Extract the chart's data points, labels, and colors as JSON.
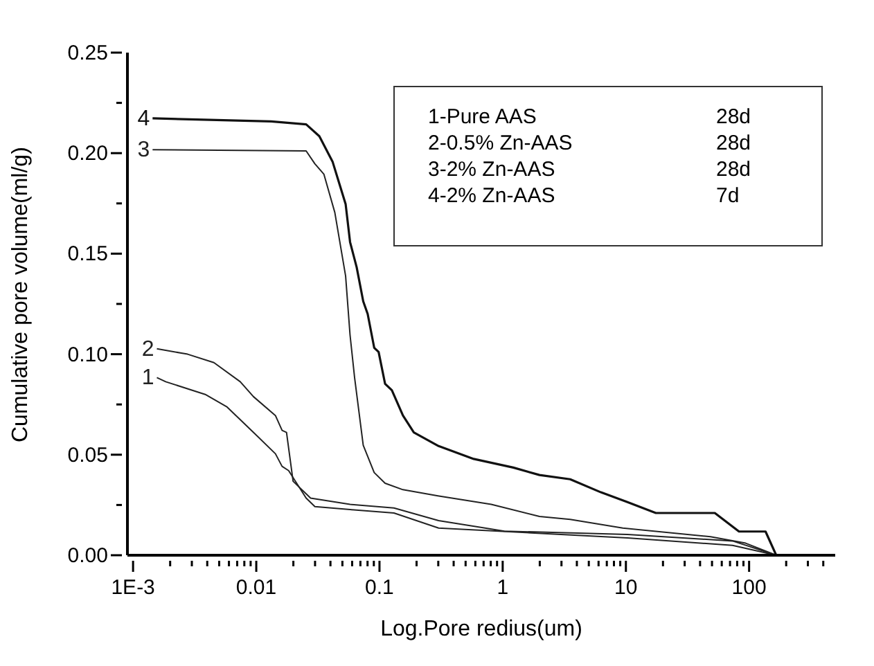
{
  "chart_data": {
    "type": "line",
    "xlabel": "Log.Pore redius(um)",
    "ylabel": "Cumulative pore volume(ml/g)",
    "log": "x",
    "marker": "none",
    "line_style": "solid",
    "xlim": [
      0.0009,
      500
    ],
    "ylim": [
      0,
      0.25
    ],
    "xticks": [
      {
        "value": 0.001,
        "label": "1E-3"
      },
      {
        "value": 0.002,
        "label": null
      },
      {
        "value": 0.003,
        "label": null
      },
      {
        "value": 0.004,
        "label": null
      },
      {
        "value": 0.005,
        "label": null
      },
      {
        "value": 0.006,
        "label": null
      },
      {
        "value": 0.007,
        "label": null
      },
      {
        "value": 0.008,
        "label": null
      },
      {
        "value": 0.009,
        "label": null
      },
      0.01,
      {
        "value": 0.02,
        "label": null
      },
      {
        "value": 0.03,
        "label": null
      },
      {
        "value": 0.04,
        "label": null
      },
      {
        "value": 0.05,
        "label": null
      },
      {
        "value": 0.06,
        "label": null
      },
      {
        "value": 0.07,
        "label": null
      },
      {
        "value": 0.08,
        "label": null
      },
      {
        "value": 0.09,
        "label": null
      },
      0.1,
      {
        "value": 0.2,
        "label": null
      },
      {
        "value": 0.3,
        "label": null
      },
      {
        "value": 0.4,
        "label": null
      },
      {
        "value": 0.5,
        "label": null
      },
      {
        "value": 0.6,
        "label": null
      },
      {
        "value": 0.7,
        "label": null
      },
      {
        "value": 0.8,
        "label": null
      },
      {
        "value": 0.9,
        "label": null
      },
      1,
      {
        "value": 2,
        "label": null
      },
      {
        "value": 3,
        "label": null
      },
      {
        "value": 4,
        "label": null
      },
      {
        "value": 5,
        "label": null
      },
      {
        "value": 6,
        "label": null
      },
      {
        "value": 7,
        "label": null
      },
      {
        "value": 8,
        "label": null
      },
      {
        "value": 9,
        "label": null
      },
      10,
      {
        "value": 20,
        "label": null
      },
      {
        "value": 30,
        "label": null
      },
      {
        "value": 40,
        "label": null
      },
      {
        "value": 50,
        "label": null
      },
      {
        "value": 60,
        "label": null
      },
      {
        "value": 70,
        "label": null
      },
      {
        "value": 80,
        "label": null
      },
      {
        "value": 90,
        "label": null
      },
      100,
      {
        "value": 200,
        "label": null
      },
      {
        "value": 300,
        "label": null
      },
      {
        "value": 400,
        "label": null
      }
    ],
    "yticks": [
      {
        "value": 0,
        "label": "0.00"
      },
      {
        "value": 0.025,
        "label": null
      },
      {
        "value": 0.05,
        "label": "0.05"
      },
      {
        "value": 0.075,
        "label": null
      },
      {
        "value": 0.1,
        "label": "0.10"
      },
      {
        "value": 0.125,
        "label": null
      },
      {
        "value": 0.15,
        "label": "0.15"
      },
      {
        "value": 0.175,
        "label": null
      },
      {
        "value": 0.2,
        "label": "0.20"
      },
      {
        "value": 0.225,
        "label": null
      },
      {
        "value": 0.25,
        "label": "0.25"
      }
    ],
    "annotations": [
      "1-Pure AAS 28d",
      "2-0.5% Zn-AAS 28d",
      "3-2% Zn-AAS 28d",
      "4-2% Zn-AAS 7d"
    ],
    "series": [
      {
        "name": "1",
        "color": "#222222",
        "x": [
          0.00156,
          0.00184,
          0.00385,
          0.0058,
          0.00948,
          0.0143,
          0.0162,
          0.0183,
          0.0254,
          0.0299,
          0.0577,
          0.131,
          0.302,
          10.3,
          73.4,
          166
        ],
        "values": [
          0.0884,
          0.0863,
          0.08,
          0.0737,
          0.0611,
          0.0505,
          0.0442,
          0.0421,
          0.0284,
          0.0242,
          0.0227,
          0.021,
          0.0135,
          0.0086,
          0.0049,
          0
        ]
      },
      {
        "name": "2",
        "color": "#222222",
        "x": [
          0.00156,
          0.00277,
          0.00453,
          0.00741,
          0.00948,
          0.0143,
          0.0162,
          0.0176,
          0.0199,
          0.0276,
          0.0577,
          0.131,
          0.302,
          1.03,
          10.3,
          73.4,
          166
        ],
        "values": [
          0.1027,
          0.1,
          0.0958,
          0.0863,
          0.0789,
          0.0695,
          0.0621,
          0.0611,
          0.0368,
          0.0284,
          0.0253,
          0.0235,
          0.0172,
          0.012,
          0.0103,
          0.0071,
          0
        ]
      },
      {
        "name": "3",
        "color": "#222222",
        "x": [
          0.00144,
          0.0254,
          0.0299,
          0.0354,
          0.0434,
          0.0531,
          0.0577,
          0.0628,
          0.0738,
          0.0906,
          0.111,
          0.155,
          0.298,
          0.807,
          1.99,
          3.53,
          9.44,
          48.6,
          93.7,
          166
        ],
        "values": [
          0.2017,
          0.2011,
          0.1947,
          0.1895,
          0.1705,
          0.1389,
          0.1095,
          0.0884,
          0.0547,
          0.0411,
          0.0358,
          0.0326,
          0.0295,
          0.0253,
          0.0193,
          0.0178,
          0.0135,
          0.0092,
          0.006,
          0
        ]
      },
      {
        "name": "4",
        "color": "#111111",
        "x": [
          0.00144,
          0.0132,
          0.0254,
          0.0325,
          0.0416,
          0.0531,
          0.0577,
          0.0653,
          0.0738,
          0.0802,
          0.0906,
          0.0984,
          0.111,
          0.126,
          0.155,
          0.19,
          0.302,
          0.582,
          1.22,
          1.99,
          3.53,
          6.27,
          10.3,
          17.5,
          52.7,
          82.8,
          136,
          166
        ],
        "values": [
          0.2173,
          0.2158,
          0.2143,
          0.2084,
          0.1958,
          0.1747,
          0.1558,
          0.1432,
          0.1263,
          0.12,
          0.1032,
          0.1011,
          0.0853,
          0.0821,
          0.0695,
          0.0611,
          0.0543,
          0.0479,
          0.0436,
          0.0399,
          0.0378,
          0.0313,
          0.0264,
          0.021,
          0.021,
          0.0118,
          0.0118,
          0
        ]
      }
    ]
  }
}
